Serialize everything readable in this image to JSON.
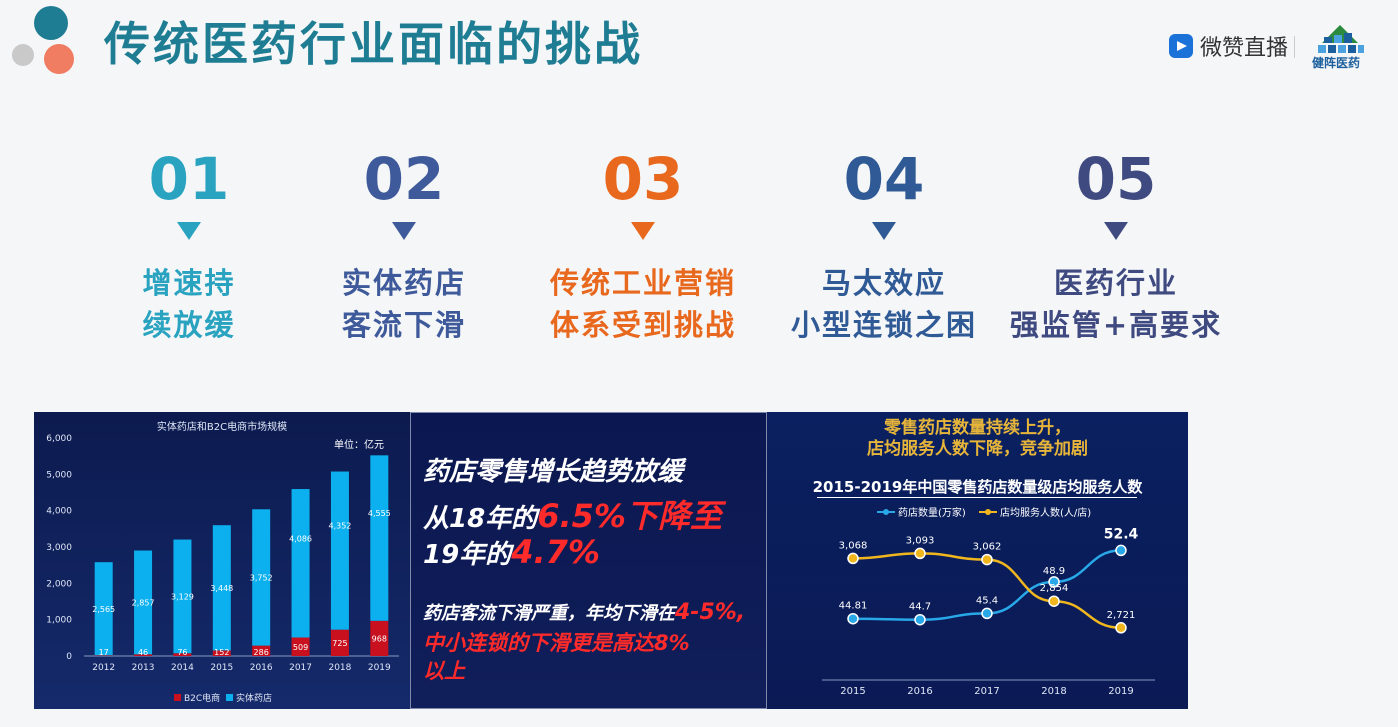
{
  "slide": {
    "title": "传统医药行业面临的挑战",
    "brand": {
      "name": "微赞直播",
      "partner": "健阵医药"
    }
  },
  "challenges": [
    {
      "num": "01",
      "line1": "增速持",
      "line2": "续放缓",
      "color": "#2aa3c0"
    },
    {
      "num": "02",
      "line1": "实体药店",
      "line2": "客流下滑",
      "color": "#3f5a9a"
    },
    {
      "num": "03",
      "line1": "传统工业营销",
      "line2": "体系受到挑战",
      "color": "#e8681e"
    },
    {
      "num": "04",
      "line1": "马太效应",
      "line2": "小型连锁之困",
      "color": "#2f5a95"
    },
    {
      "num": "05",
      "line1": "医药行业",
      "line2": "强监管+高要求",
      "color": "#3f4a80"
    }
  ],
  "panel2": {
    "line1": "药店零售增长趋势放缓",
    "line2a": "从18年的",
    "line2b": "6.5%下降至",
    "line3a": "19年的",
    "line3b": "4.7%",
    "line4a": "药店客流下滑严重，年均下滑在",
    "line4b": "4-5%,",
    "line5": "中小连锁的下滑更是高达8%",
    "line6": "以上"
  },
  "panel3": {
    "head1": "零售药店数量持续上升，",
    "head2": "店均服务人数下降，竞争加剧"
  },
  "chart_data": [
    {
      "type": "bar",
      "title": "实体药店和B2C电商市场规模",
      "unit_label": "单位：亿元",
      "categories": [
        "2012",
        "2013",
        "2014",
        "2015",
        "2016",
        "2017",
        "2018",
        "2019"
      ],
      "series": [
        {
          "name": "B2C电商",
          "values": [
            17,
            46,
            76,
            152,
            286,
            509,
            725,
            968
          ],
          "color": "#c8101e"
        },
        {
          "name": "实体药店",
          "values": [
            2565,
            2857,
            3129,
            3448,
            3752,
            4086,
            4352,
            4555
          ],
          "color": "#0db0ee"
        }
      ],
      "yticks": [
        "0",
        "1,000",
        "2,000",
        "3,000",
        "4,000",
        "5,000",
        "6,000"
      ],
      "ylim": [
        0,
        6000
      ],
      "stacked": true,
      "legend": "bottom"
    },
    {
      "type": "line",
      "title": "2015-2019年中国零售药店数量级店均服务人数",
      "categories": [
        "2015",
        "2016",
        "2017",
        "2018",
        "2019"
      ],
      "series": [
        {
          "name": "药店数量(万家)",
          "values": [
            44.81,
            44.7,
            45.4,
            48.9,
            52.4
          ],
          "labels": [
            "44.81",
            "44.7",
            "45.4",
            "48.9",
            "52.4"
          ],
          "color": "#29a8e8"
        },
        {
          "name": "店均服务人数(人/店)",
          "values": [
            3068,
            3093,
            3062,
            2854,
            2721
          ],
          "labels": [
            "3,068",
            "3,093",
            "3,062",
            "2,854",
            "2,721"
          ],
          "color": "#f0b61d"
        }
      ],
      "legend": "top"
    }
  ]
}
